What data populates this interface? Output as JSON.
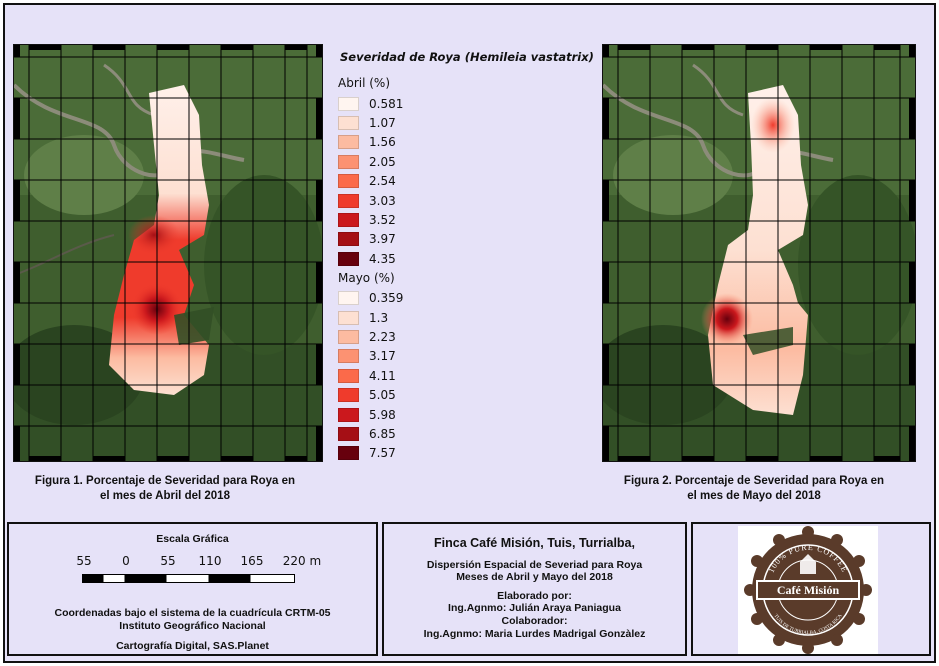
{
  "legend": {
    "title": "Severidad de Roya (Hemileia vastatrix)",
    "groups": [
      {
        "title": "Abril (%)",
        "items": [
          {
            "label": "0.581",
            "color": "#fff5f0"
          },
          {
            "label": "1.07",
            "color": "#fde0d2"
          },
          {
            "label": "1.56",
            "color": "#fcbba1"
          },
          {
            "label": "2.05",
            "color": "#fc9272"
          },
          {
            "label": "2.54",
            "color": "#fb6a4a"
          },
          {
            "label": "3.03",
            "color": "#ef3b2c"
          },
          {
            "label": "3.52",
            "color": "#cb181d"
          },
          {
            "label": "3.97",
            "color": "#a50f15"
          },
          {
            "label": "4.35",
            "color": "#67000d"
          }
        ]
      },
      {
        "title": "Mayo (%)",
        "items": [
          {
            "label": "0.359",
            "color": "#fff5f0"
          },
          {
            "label": "1.3",
            "color": "#fde0d2"
          },
          {
            "label": "2.23",
            "color": "#fcbba1"
          },
          {
            "label": "3.17",
            "color": "#fc9272"
          },
          {
            "label": "4.11",
            "color": "#fb6a4a"
          },
          {
            "label": "5.05",
            "color": "#ef3b2c"
          },
          {
            "label": "5.98",
            "color": "#cb181d"
          },
          {
            "label": "6.85",
            "color": "#a50f15"
          },
          {
            "label": "7.57",
            "color": "#67000d"
          }
        ]
      }
    ]
  },
  "maps": {
    "fig1_caption_line1": "Figura 1. Porcentaje de Severidad para Roya en",
    "fig1_caption_line2": "el mes de Abril del 2018",
    "fig2_caption_line1": "Figura 2. Porcentaje de Severidad para Roya en",
    "fig2_caption_line2": "el mes de Mayo del 2018"
  },
  "scale": {
    "title": "Escala Gráfica",
    "labels": [
      "55",
      "0",
      "55",
      "110",
      "165",
      "220 m"
    ],
    "coords_line1": "Coordenadas bajo el sistema de la cuadrícula CRTM-05",
    "coords_line2": "Instituto Geográfico Nacional",
    "source": "Cartografía Digital, SAS.Planet"
  },
  "info": {
    "farm": "Finca Café Misión, Tuis, Turrialba,",
    "subtitle_line1": "Dispersión Espacial de Severiad para Roya",
    "subtitle_line2": "Meses de Abril y Mayo del 2018",
    "elaborated_label": "Elaborado por:",
    "elaborated_by": "Ing.Agnmo: Julián Araya Paniagua",
    "collaborator_label": "Colaborador:",
    "collaborator": "Ing.Agnmo: Maria Lurdes Madrigal Gonzàlez"
  },
  "logo": {
    "arc_text": "100% PURE COFFEE",
    "brand": "Café Misión",
    "bottom_text": "TUIS DE TURRIALBA, COSTA RICA"
  }
}
